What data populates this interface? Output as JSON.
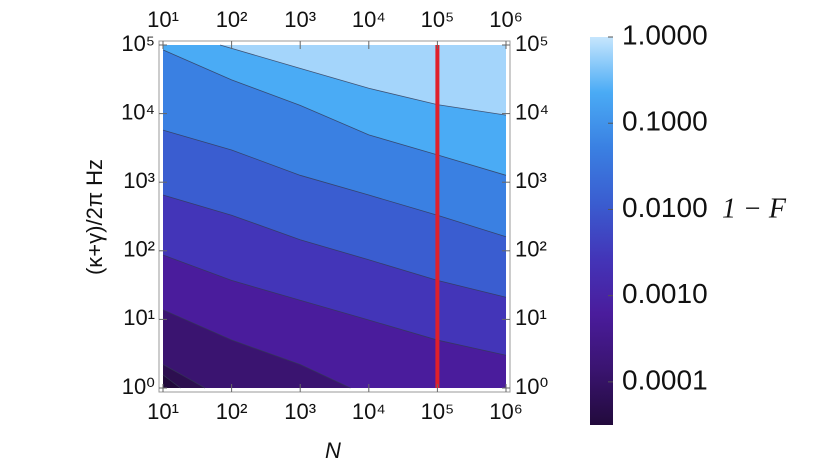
{
  "chart_data": {
    "type": "contour",
    "x_label": "N",
    "y_label": "(κ+γ)/2π Hz",
    "xscale": "log",
    "yscale": "log",
    "xlim": [
      10,
      1000000
    ],
    "ylim": [
      1,
      100000
    ],
    "xticks": [
      {
        "value": 10,
        "label": "10¹"
      },
      {
        "value": 100,
        "label": "10²"
      },
      {
        "value": 1000,
        "label": "10³"
      },
      {
        "value": 10000,
        "label": "10⁴"
      },
      {
        "value": 100000,
        "label": "10⁵"
      },
      {
        "value": 1000000,
        "label": "10⁶"
      }
    ],
    "yticks": [
      {
        "value": 1,
        "label": "10⁰"
      },
      {
        "value": 10,
        "label": "10¹"
      },
      {
        "value": 100,
        "label": "10²"
      },
      {
        "value": 1000,
        "label": "10³"
      },
      {
        "value": 10000,
        "label": "10⁴"
      },
      {
        "value": 100000,
        "label": "10⁵"
      }
    ],
    "base_color": "#220a3c",
    "contours": [
      {
        "x": [
          10,
          18
        ],
        "y": [
          1.55,
          1
        ],
        "fill": "#2d0f50"
      },
      {
        "x": [
          10,
          20,
          41
        ],
        "y": [
          2.2,
          1.5,
          1
        ],
        "fill": "#3a1470"
      },
      {
        "x": [
          10,
          100,
          1000,
          5400
        ],
        "y": [
          13.8,
          5,
          2.2,
          1
        ],
        "fill": "#4a1c9c"
      },
      {
        "x": [
          10,
          100,
          1000,
          10000,
          100000,
          1000000
        ],
        "y": [
          87,
          37,
          19,
          9.8,
          5,
          3
        ],
        "fill": "#4335b8"
      },
      {
        "x": [
          10,
          100,
          1000,
          10000,
          100000,
          1000000
        ],
        "y": [
          650,
          330,
          145,
          74,
          37,
          21
        ],
        "fill": "#3a5dd0"
      },
      {
        "x": [
          10,
          100,
          1000,
          10000,
          100000,
          1000000
        ],
        "y": [
          5750,
          2950,
          1260,
          650,
          330,
          160
        ],
        "fill": "#3a80e2"
      },
      {
        "x": [
          10,
          100,
          1000,
          10000,
          100000,
          1000000
        ],
        "y": [
          85000,
          31000,
          13200,
          4900,
          2500,
          1260
        ],
        "fill": "#4aabf5"
      },
      {
        "x": [
          68,
          1000,
          10000,
          100000,
          1000000
        ],
        "y": [
          100000,
          45700,
          23400,
          13500,
          9500
        ],
        "fill": "#a4d5fb"
      }
    ],
    "vline": {
      "x": 100000,
      "color": "#e0202a"
    },
    "colorbar": {
      "label": "1 − F",
      "scale": "log",
      "lim": [
        3.16e-05,
        1
      ],
      "colors": [
        "#220a3c",
        "#3a1470",
        "#4a1c9c",
        "#4335b8",
        "#3a5dd0",
        "#3a80e2",
        "#4aabf5",
        "#c6e6fd"
      ],
      "ticks": [
        {
          "value": 1,
          "label": "1.0000"
        },
        {
          "value": 0.1,
          "label": "0.1000"
        },
        {
          "value": 0.01,
          "label": "0.0100"
        },
        {
          "value": 0.001,
          "label": "0.0010"
        },
        {
          "value": 0.0001,
          "label": "0.0001"
        }
      ]
    }
  }
}
